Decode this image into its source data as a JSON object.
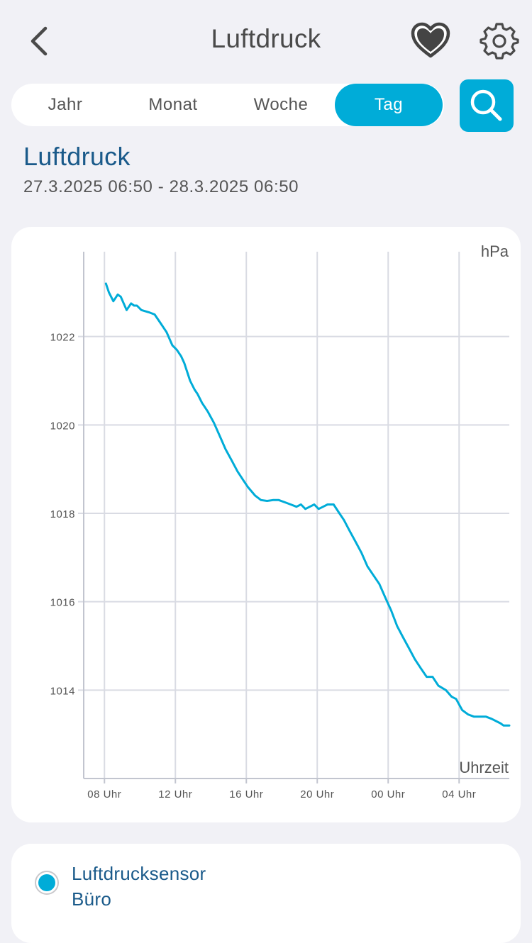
{
  "header": {
    "title": "Luftdruck",
    "back_icon": "chevron-left-icon",
    "favorite_icon": "heart-icon",
    "settings_icon": "gear-icon"
  },
  "tabs": [
    {
      "label": "Jahr",
      "active": false
    },
    {
      "label": "Monat",
      "active": false
    },
    {
      "label": "Woche",
      "active": false
    },
    {
      "label": "Tag",
      "active": true
    }
  ],
  "search": {
    "icon": "search-icon"
  },
  "section": {
    "title": "Luftdruck",
    "date_range": "27.3.2025 06:50 - 28.3.2025 06:50"
  },
  "colors": {
    "accent": "#00acd8",
    "title": "#1a5a8a",
    "grid": "#d9dbe3",
    "background": "#f1f1f6"
  },
  "chart_data": {
    "type": "line",
    "ylabel": "hPa",
    "xlabel": "Uhrzeit",
    "x_tick_labels": [
      "08 Uhr",
      "12 Uhr",
      "16 Uhr",
      "20 Uhr",
      "00 Uhr",
      "04 Uhr"
    ],
    "x_tick_hours": [
      8,
      12,
      16,
      20,
      24,
      28
    ],
    "y_ticks": [
      1014,
      1016,
      1018,
      1020,
      1022
    ],
    "xlim": [
      6.83,
      30.83
    ],
    "ylim": [
      1012.0,
      1024.0
    ],
    "grid": true,
    "series": [
      {
        "color": "#00acd8",
        "x": [
          8.08,
          8.25,
          8.5,
          8.75,
          8.92,
          9.25,
          9.5,
          9.67,
          9.83,
          10.08,
          10.5,
          10.83,
          11.17,
          11.5,
          11.83,
          12.08,
          12.33,
          12.5,
          12.83,
          13.08,
          13.25,
          13.5,
          13.83,
          14.17,
          14.5,
          14.83,
          15.17,
          15.5,
          15.83,
          16.08,
          16.5,
          16.83,
          17.17,
          17.5,
          17.83,
          18.17,
          18.5,
          18.83,
          19.08,
          19.33,
          19.58,
          19.83,
          20.08,
          20.33,
          20.58,
          20.92,
          21.25,
          21.5,
          21.83,
          22.17,
          22.5,
          22.83,
          23.08,
          23.5,
          23.83,
          24.17,
          24.5,
          24.83,
          25.17,
          25.5,
          25.83,
          26.17,
          26.5,
          26.83,
          27.25,
          27.58,
          27.83,
          28.17,
          28.5,
          28.83,
          29.08,
          29.5,
          29.83,
          30.08,
          30.33,
          30.5,
          30.67,
          30.83
        ],
        "values": [
          1023.2,
          1023.0,
          1022.8,
          1022.95,
          1022.9,
          1022.6,
          1022.75,
          1022.7,
          1022.7,
          1022.6,
          1022.55,
          1022.5,
          1022.3,
          1022.1,
          1021.8,
          1021.7,
          1021.55,
          1021.4,
          1021.0,
          1020.8,
          1020.7,
          1020.5,
          1020.3,
          1020.05,
          1019.75,
          1019.45,
          1019.2,
          1018.95,
          1018.75,
          1018.6,
          1018.4,
          1018.3,
          1018.28,
          1018.3,
          1018.3,
          1018.25,
          1018.2,
          1018.15,
          1018.2,
          1018.1,
          1018.15,
          1018.2,
          1018.1,
          1018.15,
          1018.2,
          1018.2,
          1018.0,
          1017.85,
          1017.6,
          1017.35,
          1017.1,
          1016.8,
          1016.65,
          1016.4,
          1016.1,
          1015.8,
          1015.45,
          1015.2,
          1014.95,
          1014.7,
          1014.5,
          1014.3,
          1014.3,
          1014.1,
          1014.0,
          1013.85,
          1013.8,
          1013.55,
          1013.45,
          1013.4,
          1013.4,
          1013.4,
          1013.35,
          1013.3,
          1013.25,
          1013.2,
          1013.2,
          1013.2
        ]
      }
    ]
  },
  "sensor": {
    "name_line1": "Luftdrucksensor",
    "name_line2": "Büro",
    "color": "#00acd8"
  }
}
